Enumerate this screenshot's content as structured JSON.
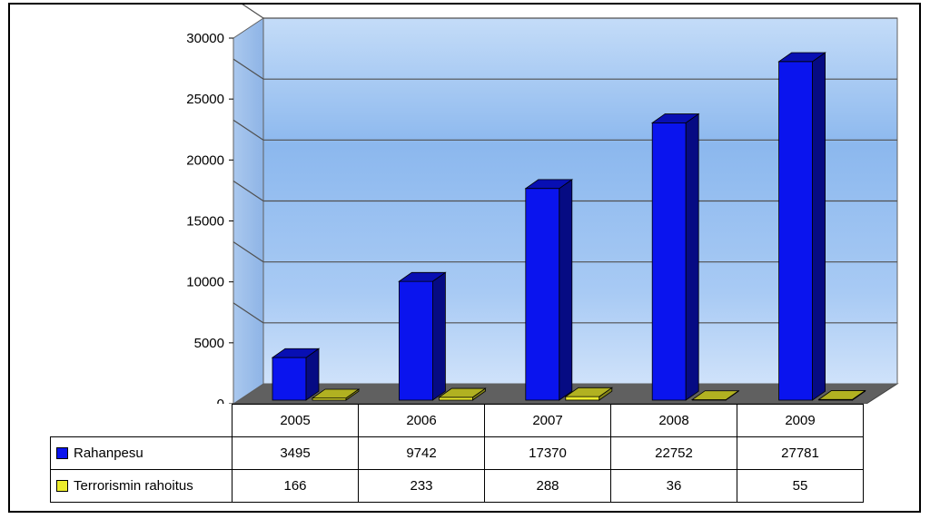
{
  "chart_data": {
    "type": "bar",
    "title": "",
    "xlabel": "",
    "ylabel": "",
    "categories": [
      "2005",
      "2006",
      "2007",
      "2008",
      "2009"
    ],
    "series": [
      {
        "name": "Rahanpesu",
        "values": [
          3495,
          9742,
          17370,
          22752,
          27781
        ],
        "color": "#0a14ee"
      },
      {
        "name": "Terrorismin rahoitus",
        "values": [
          166,
          233,
          288,
          36,
          55
        ],
        "color": "#ecec2c"
      }
    ],
    "ylim": [
      0,
      30000
    ],
    "yticks": [
      "0",
      "5000",
      "10000",
      "15000",
      "20000",
      "25000",
      "30000"
    ],
    "grid": true,
    "legend": "data table below chart",
    "style": "3d-column"
  }
}
